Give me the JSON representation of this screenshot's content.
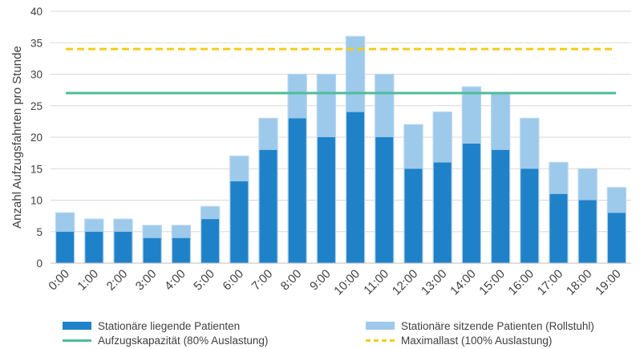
{
  "chart_data": {
    "type": "bar",
    "stacked": true,
    "title": "",
    "xlabel": "",
    "ylabel": "Anzahl Aufzugsfahrten pro Stunde",
    "ylim": [
      0,
      40
    ],
    "yticks": [
      0,
      5,
      10,
      15,
      20,
      25,
      30,
      35,
      40
    ],
    "grid": true,
    "legend_position": "bottom",
    "categories": [
      "0:00",
      "1:00",
      "2:00",
      "3:00",
      "4:00",
      "5:00",
      "6:00",
      "7:00",
      "8:00",
      "9:00",
      "10:00",
      "11:00",
      "12:00",
      "13:00",
      "14:00",
      "15:00",
      "16:00",
      "17:00",
      "18:00",
      "19:00"
    ],
    "series": [
      {
        "name": "Stationäre liegende Patienten",
        "color": "#1f82c9",
        "values": [
          5,
          5,
          5,
          4,
          4,
          7,
          13,
          18,
          23,
          20,
          24,
          20,
          15,
          16,
          19,
          18,
          15,
          11,
          10,
          8
        ]
      },
      {
        "name": "Stationäre sitzende Patienten (Rollstuhl)",
        "color": "#9dc9ea",
        "values": [
          3,
          2,
          2,
          2,
          2,
          2,
          4,
          5,
          7,
          10,
          12,
          10,
          7,
          8,
          9,
          9,
          8,
          5,
          5,
          4
        ]
      }
    ],
    "reference_lines": [
      {
        "name": "Aufzugskapazität (80% Auslastung)",
        "value": 27,
        "color": "#4dbd98",
        "style": "solid"
      },
      {
        "name": "Maximallast (100% Auslastung)",
        "value": 34,
        "color": "#f3cc18",
        "style": "dashed"
      }
    ]
  }
}
